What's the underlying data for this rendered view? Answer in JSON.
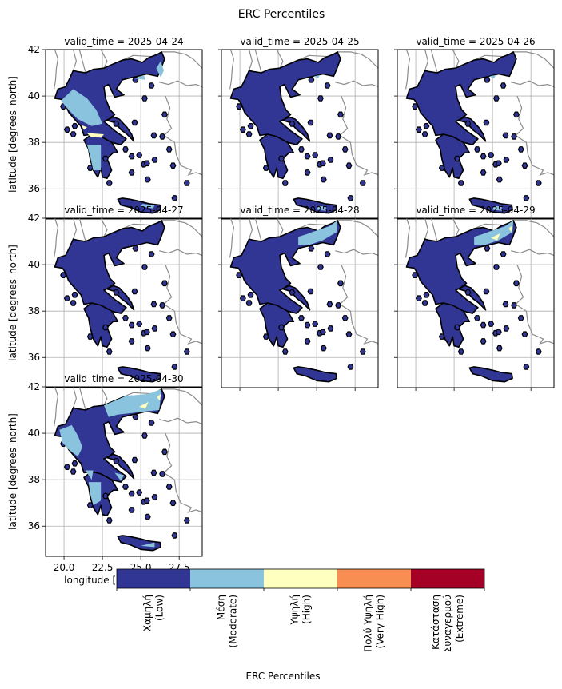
{
  "figure": {
    "title": "ERC Percentiles"
  },
  "panels": [
    {
      "title": "valid_time = 2025-04-24",
      "moderate_zones": "west-central",
      "high_zones": "gulf"
    },
    {
      "title": "valid_time = 2025-04-25",
      "moderate_zones": "minimal",
      "high_zones": "none"
    },
    {
      "title": "valid_time = 2025-04-26",
      "moderate_zones": "minimal",
      "high_zones": "none"
    },
    {
      "title": "valid_time = 2025-04-27",
      "moderate_zones": "none",
      "high_zones": "none"
    },
    {
      "title": "valid_time = 2025-04-28",
      "moderate_zones": "north-east",
      "high_zones": "none"
    },
    {
      "title": "valid_time = 2025-04-29",
      "moderate_zones": "north-east",
      "high_zones": "north-east"
    },
    {
      "title": "valid_time = 2025-04-30",
      "moderate_zones": "widespread",
      "high_zones": "north-east"
    }
  ],
  "axes": {
    "ylabel": "latitude [degrees_north]",
    "xlabel": "longitude [degrees_east]",
    "xlim": [
      18.8,
      29.0
    ],
    "ylim": [
      34.7,
      42.0
    ],
    "xticks": [
      "20.0",
      "22.5",
      "25.0",
      "27.5"
    ],
    "yticks": [
      "36",
      "38",
      "40",
      "42"
    ],
    "grid": true
  },
  "colorbar": {
    "label": "ERC Percentiles",
    "categories": [
      {
        "label": "Χαμηλή\n(Low)",
        "color": "#313695"
      },
      {
        "label": "Μέση\n(Moderate)",
        "color": "#8ac3dd"
      },
      {
        "label": "Υψηλή\n(High)",
        "color": "#ffffbf"
      },
      {
        "label": "Πολύ Υψηλή\n(Very High)",
        "color": "#f88e52"
      },
      {
        "label": "Κατάσταση\nΣυναγερμού\n(Extreme)",
        "color": "#a50026"
      }
    ]
  },
  "colors": {
    "coast": "#000000",
    "borders": "#8c8c8c",
    "grid": "#b0b0b0"
  }
}
